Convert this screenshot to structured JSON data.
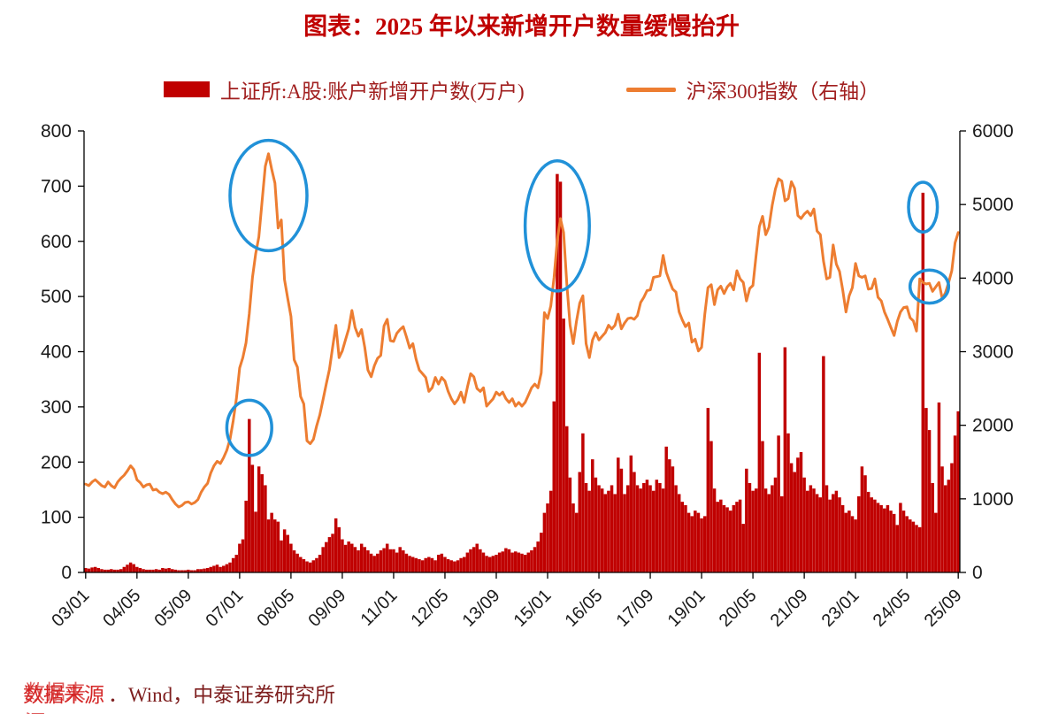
{
  "title": "图表：2025 年以来新增开户数量缓慢抬升",
  "legend": {
    "bar_label": "上证所:A股:账户新增开户数(万户)",
    "line_label": "沪深300指数（右轴）"
  },
  "source": {
    "prefix": "数据来源",
    "text": "．Wind，中泰证券研究所"
  },
  "colors": {
    "bar": "#c00000",
    "line": "#ed7d31",
    "annotation": "#2191d8",
    "axis_text": "#1a1a1a",
    "title": "#c00000",
    "legend_text": "#a11f1f",
    "source_text": "#7e1f1f"
  },
  "chart_data": {
    "type": "bar",
    "subtype": "combo_bar_line",
    "title": "图表：2025 年以来新增开户数量缓慢抬升",
    "x_range": "monthly 2003/01 - 2025/09",
    "x_tick_step": 16,
    "x_tick_labels": [
      "03/01",
      "04/05",
      "05/09",
      "07/01",
      "08/05",
      "09/09",
      "11/01",
      "12/05",
      "13/09",
      "15/01",
      "16/05",
      "17/09",
      "19/01",
      "20/05",
      "21/09",
      "23/01",
      "24/05",
      "25/09"
    ],
    "left_axis": {
      "min": 0,
      "max": 800,
      "step": 100
    },
    "right_axis": {
      "min": 0,
      "max": 6000,
      "step": 1000
    },
    "grid": false,
    "legend_position": "top",
    "series": [
      {
        "name": "上证所:A股:账户新增开户数(万户)",
        "type": "bar",
        "axis": "left",
        "values": [
          8,
          7,
          9,
          10,
          8,
          6,
          5,
          5,
          6,
          5,
          5,
          6,
          10,
          14,
          18,
          15,
          10,
          8,
          6,
          5,
          5,
          5,
          6,
          5,
          8,
          7,
          8,
          6,
          5,
          4,
          4,
          4,
          5,
          4,
          4,
          6,
          6,
          7,
          8,
          10,
          12,
          14,
          10,
          12,
          15,
          18,
          26,
          32,
          52,
          60,
          130,
          278,
          195,
          110,
          192,
          178,
          158,
          96,
          108,
          96,
          92,
          58,
          78,
          68,
          52,
          40,
          34,
          28,
          24,
          20,
          18,
          22,
          26,
          32,
          46,
          55,
          64,
          70,
          98,
          82,
          60,
          50,
          56,
          52,
          46,
          40,
          52,
          46,
          40,
          34,
          30,
          34,
          40,
          44,
          52,
          42,
          42,
          36,
          46,
          40,
          34,
          30,
          28,
          26,
          24,
          22,
          26,
          28,
          26,
          22,
          32,
          34,
          28,
          24,
          22,
          20,
          22,
          26,
          28,
          36,
          42,
          46,
          52,
          42,
          36,
          30,
          28,
          30,
          32,
          36,
          38,
          44,
          42,
          36,
          38,
          36,
          34,
          32,
          36,
          40,
          46,
          56,
          72,
          108,
          125,
          148,
          310,
          722,
          708,
          460,
          265,
          172,
          125,
          108,
          182,
          252,
          162,
          148,
          205,
          172,
          158,
          152,
          142,
          148,
          158,
          142,
          208,
          188,
          142,
          158,
          212,
          182,
          158,
          152,
          162,
          168,
          158,
          148,
          168,
          162,
          152,
          228,
          205,
          192,
          158,
          142,
          128,
          122,
          108,
          102,
          112,
          108,
          98,
          102,
          298,
          238,
          152,
          128,
          132,
          122,
          118,
          112,
          122,
          128,
          132,
          88,
          188,
          162,
          148,
          152,
          398,
          238,
          152,
          142,
          158,
          172,
          248,
          138,
          408,
          252,
          198,
          182,
          208,
          218,
          172,
          148,
          158,
          152,
          142,
          136,
          392,
          158,
          132,
          142,
          148,
          136,
          122,
          108,
          112,
          102,
          96,
          138,
          192,
          176,
          146,
          136,
          132,
          126,
          122,
          116,
          122,
          112,
          106,
          86,
          126,
          112,
          102,
          96,
          92,
          86,
          82,
          688,
          298,
          258,
          162,
          108,
          308,
          192,
          158,
          168,
          198,
          248,
          292
        ]
      },
      {
        "name": "沪深300指数（右轴）",
        "type": "line",
        "axis": "right",
        "values": [
          1200,
          1180,
          1230,
          1260,
          1220,
          1180,
          1160,
          1230,
          1180,
          1150,
          1230,
          1280,
          1320,
          1380,
          1450,
          1400,
          1260,
          1220,
          1160,
          1190,
          1200,
          1120,
          1130,
          1090,
          1070,
          1090,
          1060,
          990,
          930,
          890,
          910,
          950,
          960,
          930,
          950,
          990,
          1090,
          1160,
          1210,
          1350,
          1450,
          1510,
          1480,
          1560,
          1660,
          1810,
          2060,
          2370,
          2780,
          2920,
          3120,
          3520,
          4010,
          4330,
          4560,
          5050,
          5520,
          5690,
          5480,
          5290,
          4680,
          4790,
          3980,
          3720,
          3480,
          2890,
          2790,
          2390,
          2290,
          1790,
          1750,
          1810,
          1990,
          2140,
          2350,
          2560,
          2760,
          3060,
          3360,
          2920,
          3010,
          3160,
          3310,
          3560,
          3330,
          3210,
          3300,
          3060,
          2750,
          2660,
          2810,
          2910,
          2950,
          3350,
          3440,
          3150,
          3140,
          3250,
          3300,
          3340,
          3200,
          3050,
          3110,
          2900,
          2750,
          2700,
          2650,
          2460,
          2510,
          2650,
          2560,
          2650,
          2600,
          2460,
          2360,
          2290,
          2350,
          2450,
          2310,
          2520,
          2700,
          2660,
          2500,
          2460,
          2510,
          2260,
          2310,
          2360,
          2450,
          2410,
          2450,
          2360,
          2310,
          2360,
          2260,
          2310,
          2260,
          2310,
          2410,
          2510,
          2560,
          2510,
          2710,
          3530,
          3450,
          3620,
          4010,
          4510,
          4810,
          4620,
          3910,
          3360,
          3110,
          3410,
          3660,
          3760,
          3110,
          2920,
          3160,
          3260,
          3160,
          3210,
          3260,
          3360,
          3310,
          3360,
          3510,
          3310,
          3390,
          3450,
          3460,
          3440,
          3490,
          3670,
          3740,
          3830,
          3840,
          4010,
          4020,
          4030,
          4310,
          4080,
          3960,
          3850,
          3810,
          3540,
          3430,
          3340,
          3390,
          3130,
          3170,
          3010,
          3060,
          3510,
          3870,
          3910,
          3640,
          3840,
          3890,
          3790,
          3880,
          3930,
          3840,
          4100,
          3990,
          3940,
          3690,
          3860,
          3900,
          4310,
          4700,
          4840,
          4590,
          4690,
          4990,
          5210,
          5350,
          5320,
          5050,
          5080,
          5310,
          5220,
          4850,
          4810,
          4870,
          4910,
          4850,
          4940,
          4640,
          4590,
          4230,
          3990,
          4010,
          4450,
          4190,
          4090,
          3840,
          3540,
          3760,
          3870,
          4200,
          4030,
          4010,
          4030,
          3850,
          3860,
          3990,
          3740,
          3690,
          3540,
          3440,
          3330,
          3220,
          3410,
          3540,
          3600,
          3610,
          3460,
          3420,
          3280,
          3990,
          3940,
          3920,
          3930,
          3820,
          3880,
          3940,
          3720,
          3800,
          3940,
          4100,
          4480,
          4620
        ]
      }
    ],
    "annotations": [
      {
        "name": "line-peak-2007",
        "month_index": 57,
        "center_left_value": 683,
        "rx_months": 12,
        "ry_left_value": 100
      },
      {
        "name": "bar-peak-2007",
        "month_index": 51,
        "center_left_value": 262,
        "rx_months": 7,
        "ry_left_value": 50
      },
      {
        "name": "peak-2015",
        "month_index": 147,
        "center_left_value": 628,
        "rx_months": 10,
        "ry_left_value": 118
      },
      {
        "name": "bar-peak-2024",
        "month_index": 261,
        "center_left_value": 662,
        "rx_months": 4.5,
        "ry_left_value": 45
      },
      {
        "name": "line-dip-2024",
        "month_index": 263,
        "center_left_value": 518,
        "rx_months": 6,
        "ry_left_value": 30
      }
    ]
  }
}
